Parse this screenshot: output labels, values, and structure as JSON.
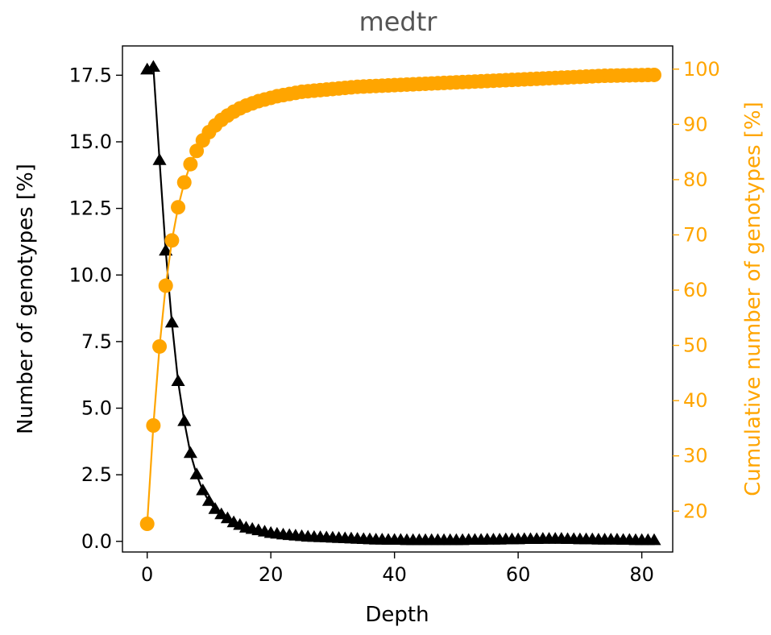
{
  "chart_data": {
    "type": "line",
    "title": "medtr",
    "xlabel": "Depth",
    "ylabel_left": "Number of genotypes [%]",
    "ylabel_right": "Cumulative number of genotypes [%]",
    "xlim": [
      -4,
      85
    ],
    "ylim_left": [
      -0.4,
      18.6
    ],
    "ylim_right": [
      12.6,
      104.2
    ],
    "x_ticks": [
      0,
      20,
      40,
      60,
      80
    ],
    "x_tick_labels": [
      "0",
      "20",
      "40",
      "60",
      "80"
    ],
    "y_left_ticks": [
      0.0,
      2.5,
      5.0,
      7.5,
      10.0,
      12.5,
      15.0,
      17.5
    ],
    "y_left_tick_labels": [
      "0.0",
      "2.5",
      "5.0",
      "7.5",
      "10.0",
      "12.5",
      "15.0",
      "17.5"
    ],
    "y_right_ticks": [
      20,
      30,
      40,
      50,
      60,
      70,
      80,
      90,
      100
    ],
    "y_right_tick_labels": [
      "20",
      "30",
      "40",
      "50",
      "60",
      "70",
      "80",
      "90",
      "100"
    ],
    "grid": false,
    "legend": "none",
    "colors": {
      "count": "#000000",
      "cumulative": "#FFA500",
      "right_axis": "#FFA500",
      "title": "#555555"
    },
    "series": [
      {
        "axis": "left",
        "marker": "triangle",
        "color": "#000000",
        "x": [
          0,
          1,
          2,
          3,
          4,
          5,
          6,
          7,
          8,
          9,
          10,
          11,
          12,
          13,
          14,
          15,
          16,
          17,
          18,
          19,
          20,
          21,
          22,
          23,
          24,
          25,
          26,
          27,
          28,
          29,
          30,
          31,
          32,
          33,
          34,
          35,
          36,
          37,
          38,
          39,
          40,
          41,
          42,
          43,
          44,
          45,
          46,
          47,
          48,
          49,
          50,
          51,
          52,
          53,
          54,
          55,
          56,
          57,
          58,
          59,
          60,
          61,
          62,
          63,
          64,
          65,
          66,
          67,
          68,
          69,
          70,
          71,
          72,
          73,
          74,
          75,
          76,
          77,
          78,
          79,
          80,
          81,
          82
        ],
        "values": [
          17.7,
          17.8,
          14.3,
          10.9,
          8.2,
          6.0,
          4.5,
          3.3,
          2.5,
          1.9,
          1.5,
          1.2,
          1.0,
          0.85,
          0.7,
          0.6,
          0.5,
          0.45,
          0.4,
          0.35,
          0.3,
          0.27,
          0.24,
          0.22,
          0.2,
          0.18,
          0.16,
          0.15,
          0.14,
          0.13,
          0.12,
          0.11,
          0.1,
          0.09,
          0.08,
          0.07,
          0.06,
          0.05,
          0.05,
          0.04,
          0.04,
          0.04,
          0.03,
          0.03,
          0.03,
          0.03,
          0.03,
          0.03,
          0.03,
          0.03,
          0.03,
          0.03,
          0.04,
          0.04,
          0.04,
          0.05,
          0.05,
          0.05,
          0.06,
          0.06,
          0.06,
          0.07,
          0.07,
          0.07,
          0.08,
          0.08,
          0.08,
          0.08,
          0.07,
          0.07,
          0.06,
          0.06,
          0.06,
          0.05,
          0.05,
          0.05,
          0.05,
          0.04,
          0.04,
          0.03,
          0.03,
          0.03,
          0.03
        ]
      },
      {
        "axis": "right",
        "marker": "circle",
        "color": "#FFA500",
        "x": [
          0,
          1,
          2,
          3,
          4,
          5,
          6,
          7,
          8,
          9,
          10,
          11,
          12,
          13,
          14,
          15,
          16,
          17,
          18,
          19,
          20,
          21,
          22,
          23,
          24,
          25,
          26,
          27,
          28,
          29,
          30,
          31,
          32,
          33,
          34,
          35,
          36,
          37,
          38,
          39,
          40,
          41,
          42,
          43,
          44,
          45,
          46,
          47,
          48,
          49,
          50,
          51,
          52,
          53,
          54,
          55,
          56,
          57,
          58,
          59,
          60,
          61,
          62,
          63,
          64,
          65,
          66,
          67,
          68,
          69,
          70,
          71,
          72,
          73,
          74,
          75,
          76,
          77,
          78,
          79,
          80,
          81,
          82
        ],
        "values": [
          17.7,
          35.5,
          49.8,
          60.8,
          69.0,
          75.0,
          79.5,
          82.8,
          85.2,
          87.1,
          88.6,
          89.8,
          90.8,
          91.6,
          92.3,
          92.9,
          93.4,
          93.8,
          94.2,
          94.5,
          94.8,
          95.1,
          95.3,
          95.5,
          95.7,
          95.9,
          96.0,
          96.1,
          96.2,
          96.3,
          96.4,
          96.5,
          96.6,
          96.7,
          96.8,
          96.85,
          96.9,
          96.95,
          97.0,
          97.05,
          97.1,
          97.15,
          97.2,
          97.25,
          97.3,
          97.35,
          97.4,
          97.45,
          97.5,
          97.55,
          97.6,
          97.65,
          97.7,
          97.75,
          97.8,
          97.85,
          97.9,
          97.95,
          98.0,
          98.05,
          98.1,
          98.15,
          98.2,
          98.25,
          98.3,
          98.35,
          98.4,
          98.45,
          98.5,
          98.55,
          98.6,
          98.65,
          98.7,
          98.75,
          98.8,
          98.82,
          98.84,
          98.86,
          98.88,
          98.9,
          98.92,
          98.94,
          98.95
        ]
      }
    ]
  }
}
